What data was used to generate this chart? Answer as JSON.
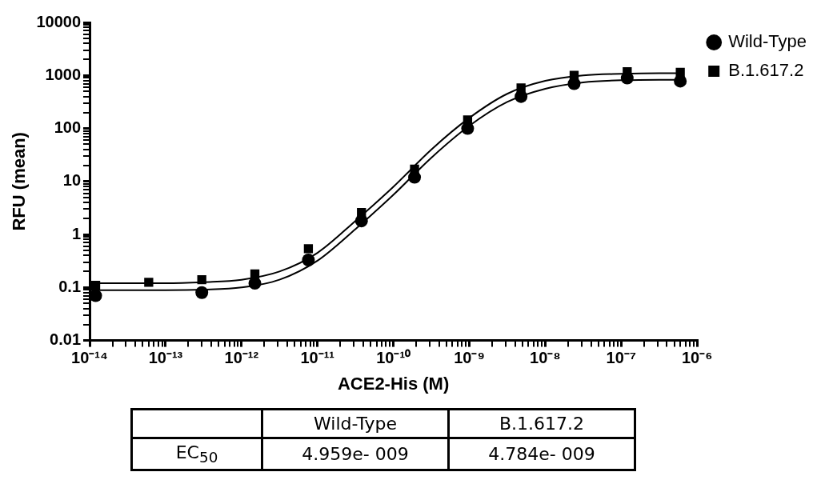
{
  "chart_data": {
    "type": "scatter",
    "xlabel": "ACE2-His (M)",
    "ylabel": "RFU (mean)",
    "log": "xy",
    "grid": false,
    "legend": "top right",
    "xlim": [
      1e-14,
      1e-06
    ],
    "ylim": [
      0.01,
      10000
    ],
    "xticks": [
      {
        "value": 1e-14,
        "label": "10⁻¹⁴"
      },
      {
        "value": 2e-14,
        "label": null
      },
      {
        "value": 3e-14,
        "label": null
      },
      {
        "value": 4e-14,
        "label": null
      },
      {
        "value": 5e-14,
        "label": null
      },
      {
        "value": 6e-14,
        "label": null
      },
      {
        "value": 7e-14,
        "label": null
      },
      {
        "value": 8e-14,
        "label": null
      },
      {
        "value": 9e-14,
        "label": null
      },
      {
        "value": 1e-13,
        "label": "10⁻¹³"
      },
      {
        "value": 2e-13,
        "label": null
      },
      {
        "value": 3e-13,
        "label": null
      },
      {
        "value": 4e-13,
        "label": null
      },
      {
        "value": 5e-13,
        "label": null
      },
      {
        "value": 6e-13,
        "label": null
      },
      {
        "value": 7e-13,
        "label": null
      },
      {
        "value": 8e-13,
        "label": null
      },
      {
        "value": 9e-13,
        "label": null
      },
      {
        "value": 1e-12,
        "label": "10⁻¹²"
      },
      {
        "value": 2e-12,
        "label": null
      },
      {
        "value": 3e-12,
        "label": null
      },
      {
        "value": 4e-12,
        "label": null
      },
      {
        "value": 5e-12,
        "label": null
      },
      {
        "value": 6e-12,
        "label": null
      },
      {
        "value": 7e-12,
        "label": null
      },
      {
        "value": 8e-12,
        "label": null
      },
      {
        "value": 9e-12,
        "label": null
      },
      {
        "value": 1e-11,
        "label": "10⁻¹¹"
      },
      {
        "value": 2e-11,
        "label": null
      },
      {
        "value": 3e-11,
        "label": null
      },
      {
        "value": 4e-11,
        "label": null
      },
      {
        "value": 5e-11,
        "label": null
      },
      {
        "value": 6e-11,
        "label": null
      },
      {
        "value": 7e-11,
        "label": null
      },
      {
        "value": 8e-11,
        "label": null
      },
      {
        "value": 9e-11,
        "label": null
      },
      {
        "value": 1e-10,
        "label": "10⁻¹⁰"
      },
      {
        "value": 2e-10,
        "label": null
      },
      {
        "value": 3e-10,
        "label": null
      },
      {
        "value": 4e-10,
        "label": null
      },
      {
        "value": 5e-10,
        "label": null
      },
      {
        "value": 6e-10,
        "label": null
      },
      {
        "value": 7e-10,
        "label": null
      },
      {
        "value": 8e-10,
        "label": null
      },
      {
        "value": 9e-10,
        "label": null
      },
      {
        "value": 1e-09,
        "label": "10⁻⁹"
      },
      {
        "value": 2e-09,
        "label": null
      },
      {
        "value": 3e-09,
        "label": null
      },
      {
        "value": 4e-09,
        "label": null
      },
      {
        "value": 5e-09,
        "label": null
      },
      {
        "value": 6e-09,
        "label": null
      },
      {
        "value": 7e-09,
        "label": null
      },
      {
        "value": 8e-09,
        "label": null
      },
      {
        "value": 9e-09,
        "label": null
      },
      {
        "value": 1e-08,
        "label": "10⁻⁸"
      },
      {
        "value": 2e-08,
        "label": null
      },
      {
        "value": 3e-08,
        "label": null
      },
      {
        "value": 4e-08,
        "label": null
      },
      {
        "value": 5e-08,
        "label": null
      },
      {
        "value": 6e-08,
        "label": null
      },
      {
        "value": 7e-08,
        "label": null
      },
      {
        "value": 8e-08,
        "label": null
      },
      {
        "value": 9e-08,
        "label": null
      },
      {
        "value": 1e-07,
        "label": "10⁻⁷"
      },
      {
        "value": 2e-07,
        "label": null
      },
      {
        "value": 3e-07,
        "label": null
      },
      {
        "value": 4e-07,
        "label": null
      },
      {
        "value": 5e-07,
        "label": null
      },
      {
        "value": 6e-07,
        "label": null
      },
      {
        "value": 7e-07,
        "label": null
      },
      {
        "value": 8e-07,
        "label": null
      },
      {
        "value": 9e-07,
        "label": null
      },
      {
        "value": 1e-06,
        "label": "10⁻⁶"
      }
    ],
    "yticks": [
      0.01,
      {
        "value": 0.02,
        "label": null
      },
      {
        "value": 0.03,
        "label": null
      },
      {
        "value": 0.04,
        "label": null
      },
      {
        "value": 0.05,
        "label": null
      },
      {
        "value": 0.06,
        "label": null
      },
      {
        "value": 0.07,
        "label": null
      },
      {
        "value": 0.08,
        "label": null
      },
      {
        "value": 0.09,
        "label": null
      },
      0.1,
      {
        "value": 0.2,
        "label": null
      },
      {
        "value": 0.3,
        "label": null
      },
      {
        "value": 0.4,
        "label": null
      },
      {
        "value": 0.5,
        "label": null
      },
      {
        "value": 0.6,
        "label": null
      },
      {
        "value": 0.7,
        "label": null
      },
      {
        "value": 0.8,
        "label": null
      },
      {
        "value": 0.9,
        "label": null
      },
      1,
      {
        "value": 2,
        "label": null
      },
      {
        "value": 3,
        "label": null
      },
      {
        "value": 4,
        "label": null
      },
      {
        "value": 5,
        "label": null
      },
      {
        "value": 6,
        "label": null
      },
      {
        "value": 7,
        "label": null
      },
      {
        "value": 8,
        "label": null
      },
      {
        "value": 9,
        "label": null
      },
      10,
      {
        "value": 20,
        "label": null
      },
      {
        "value": 30,
        "label": null
      },
      {
        "value": 40,
        "label": null
      },
      {
        "value": 50,
        "label": null
      },
      {
        "value": 60,
        "label": null
      },
      {
        "value": 70,
        "label": null
      },
      {
        "value": 80,
        "label": null
      },
      {
        "value": 90,
        "label": null
      },
      100,
      {
        "value": 200,
        "label": null
      },
      {
        "value": 300,
        "label": null
      },
      {
        "value": 400,
        "label": null
      },
      {
        "value": 500,
        "label": null
      },
      {
        "value": 600,
        "label": null
      },
      {
        "value": 700,
        "label": null
      },
      {
        "value": 800,
        "label": null
      },
      {
        "value": 900,
        "label": null
      },
      1000,
      {
        "value": 2000,
        "label": null
      },
      {
        "value": 3000,
        "label": null
      },
      {
        "value": 4000,
        "label": null
      },
      {
        "value": 5000,
        "label": null
      },
      {
        "value": 6000,
        "label": null
      },
      {
        "value": 7000,
        "label": null
      },
      {
        "value": 8000,
        "label": null
      },
      {
        "value": 9000,
        "label": null
      },
      10000
    ],
    "x": [
      1.2e-14,
      6e-14,
      3e-13,
      1.5e-12,
      7.6e-12,
      3.8e-11,
      1.9e-10,
      9.5e-10,
      4.8e-09,
      2.4e-08,
      1.2e-07,
      6e-07
    ],
    "series": [
      {
        "name": "Wild-Type",
        "marker": "circle",
        "color": "#000000",
        "values": [
          0.07,
          null,
          0.08,
          0.12,
          0.33,
          1.8,
          12,
          100,
          400,
          700,
          890,
          780
        ]
      },
      {
        "name": "B.1.617.2",
        "marker": "square",
        "color": "#000000",
        "values": [
          0.11,
          0.125,
          0.14,
          0.18,
          0.54,
          2.6,
          17,
          145,
          580,
          1000,
          1170,
          1140
        ]
      },
      {
        "type": "line",
        "marker": "none",
        "color": "#000000",
        "x": [
          1e-14,
          1e-13,
          3.16e-13,
          1e-12,
          3.16e-12,
          1e-11,
          3.16e-11,
          1e-10,
          3.16e-10,
          1e-09,
          3.16e-09,
          1e-08,
          3.16e-08,
          1e-07,
          3.16e-07,
          5.6e-07
        ],
        "values": [
          0.089,
          0.089,
          0.091,
          0.1,
          0.14,
          0.32,
          1.26,
          5.6,
          28,
          112,
          316,
          560,
          740,
          810,
          830,
          830
        ]
      },
      {
        "type": "line",
        "marker": "none",
        "color": "#000000",
        "x": [
          1e-14,
          1e-13,
          3.16e-13,
          1e-12,
          3.16e-12,
          1e-11,
          3.16e-11,
          1e-10,
          3.16e-10,
          1e-09,
          3.16e-09,
          1e-08,
          3.16e-08,
          1e-07,
          3.16e-07,
          5.6e-07
        ],
        "values": [
          0.12,
          0.12,
          0.126,
          0.14,
          0.2,
          0.45,
          1.8,
          7.9,
          40,
          158,
          450,
          790,
          1000,
          1070,
          1100,
          1100
        ]
      }
    ],
    "annotations": [
      "EC$_{50}$",
      "4.959e- 009",
      "4.784e- 009"
    ]
  }
}
